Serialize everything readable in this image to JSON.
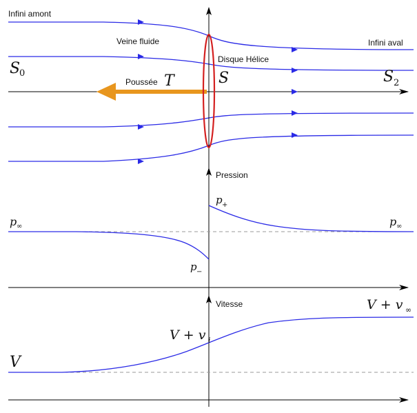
{
  "labels": {
    "infini_amont": "Infini amont",
    "veine_fluide": "Veine fluide",
    "disque_helice": "Disque Hélice",
    "infini_aval": "Infini aval",
    "poussee": "Poussée",
    "thrust_symbol": "T",
    "section_s0": "S",
    "section_s0_sub": "0",
    "section_s": "S",
    "section_s2": "S",
    "section_s2_sub": "2",
    "pression": "Pression",
    "p_plus": "p",
    "p_plus_sub": "+",
    "p_minus": "p",
    "p_minus_sub": "−",
    "p_inf_left": "p",
    "p_inf_right": "p",
    "inf_sub": "∞",
    "vitesse": "Vitesse",
    "v_plus_vi": "V + v",
    "vi_sub": "i",
    "v_plus_vinf": "V + v",
    "vinf_sub": "∞",
    "v_left": "V"
  },
  "colors": {
    "streamline": "#2a2ae6",
    "disk": "#d42020",
    "thrust_arrow": "#e8961e",
    "axis": "#000000",
    "dashed": "#999999"
  },
  "icons": {
    "thrust": "arrow-left-icon",
    "axis_end": "arrow-right-icon",
    "axis_up": "arrow-up-icon"
  }
}
